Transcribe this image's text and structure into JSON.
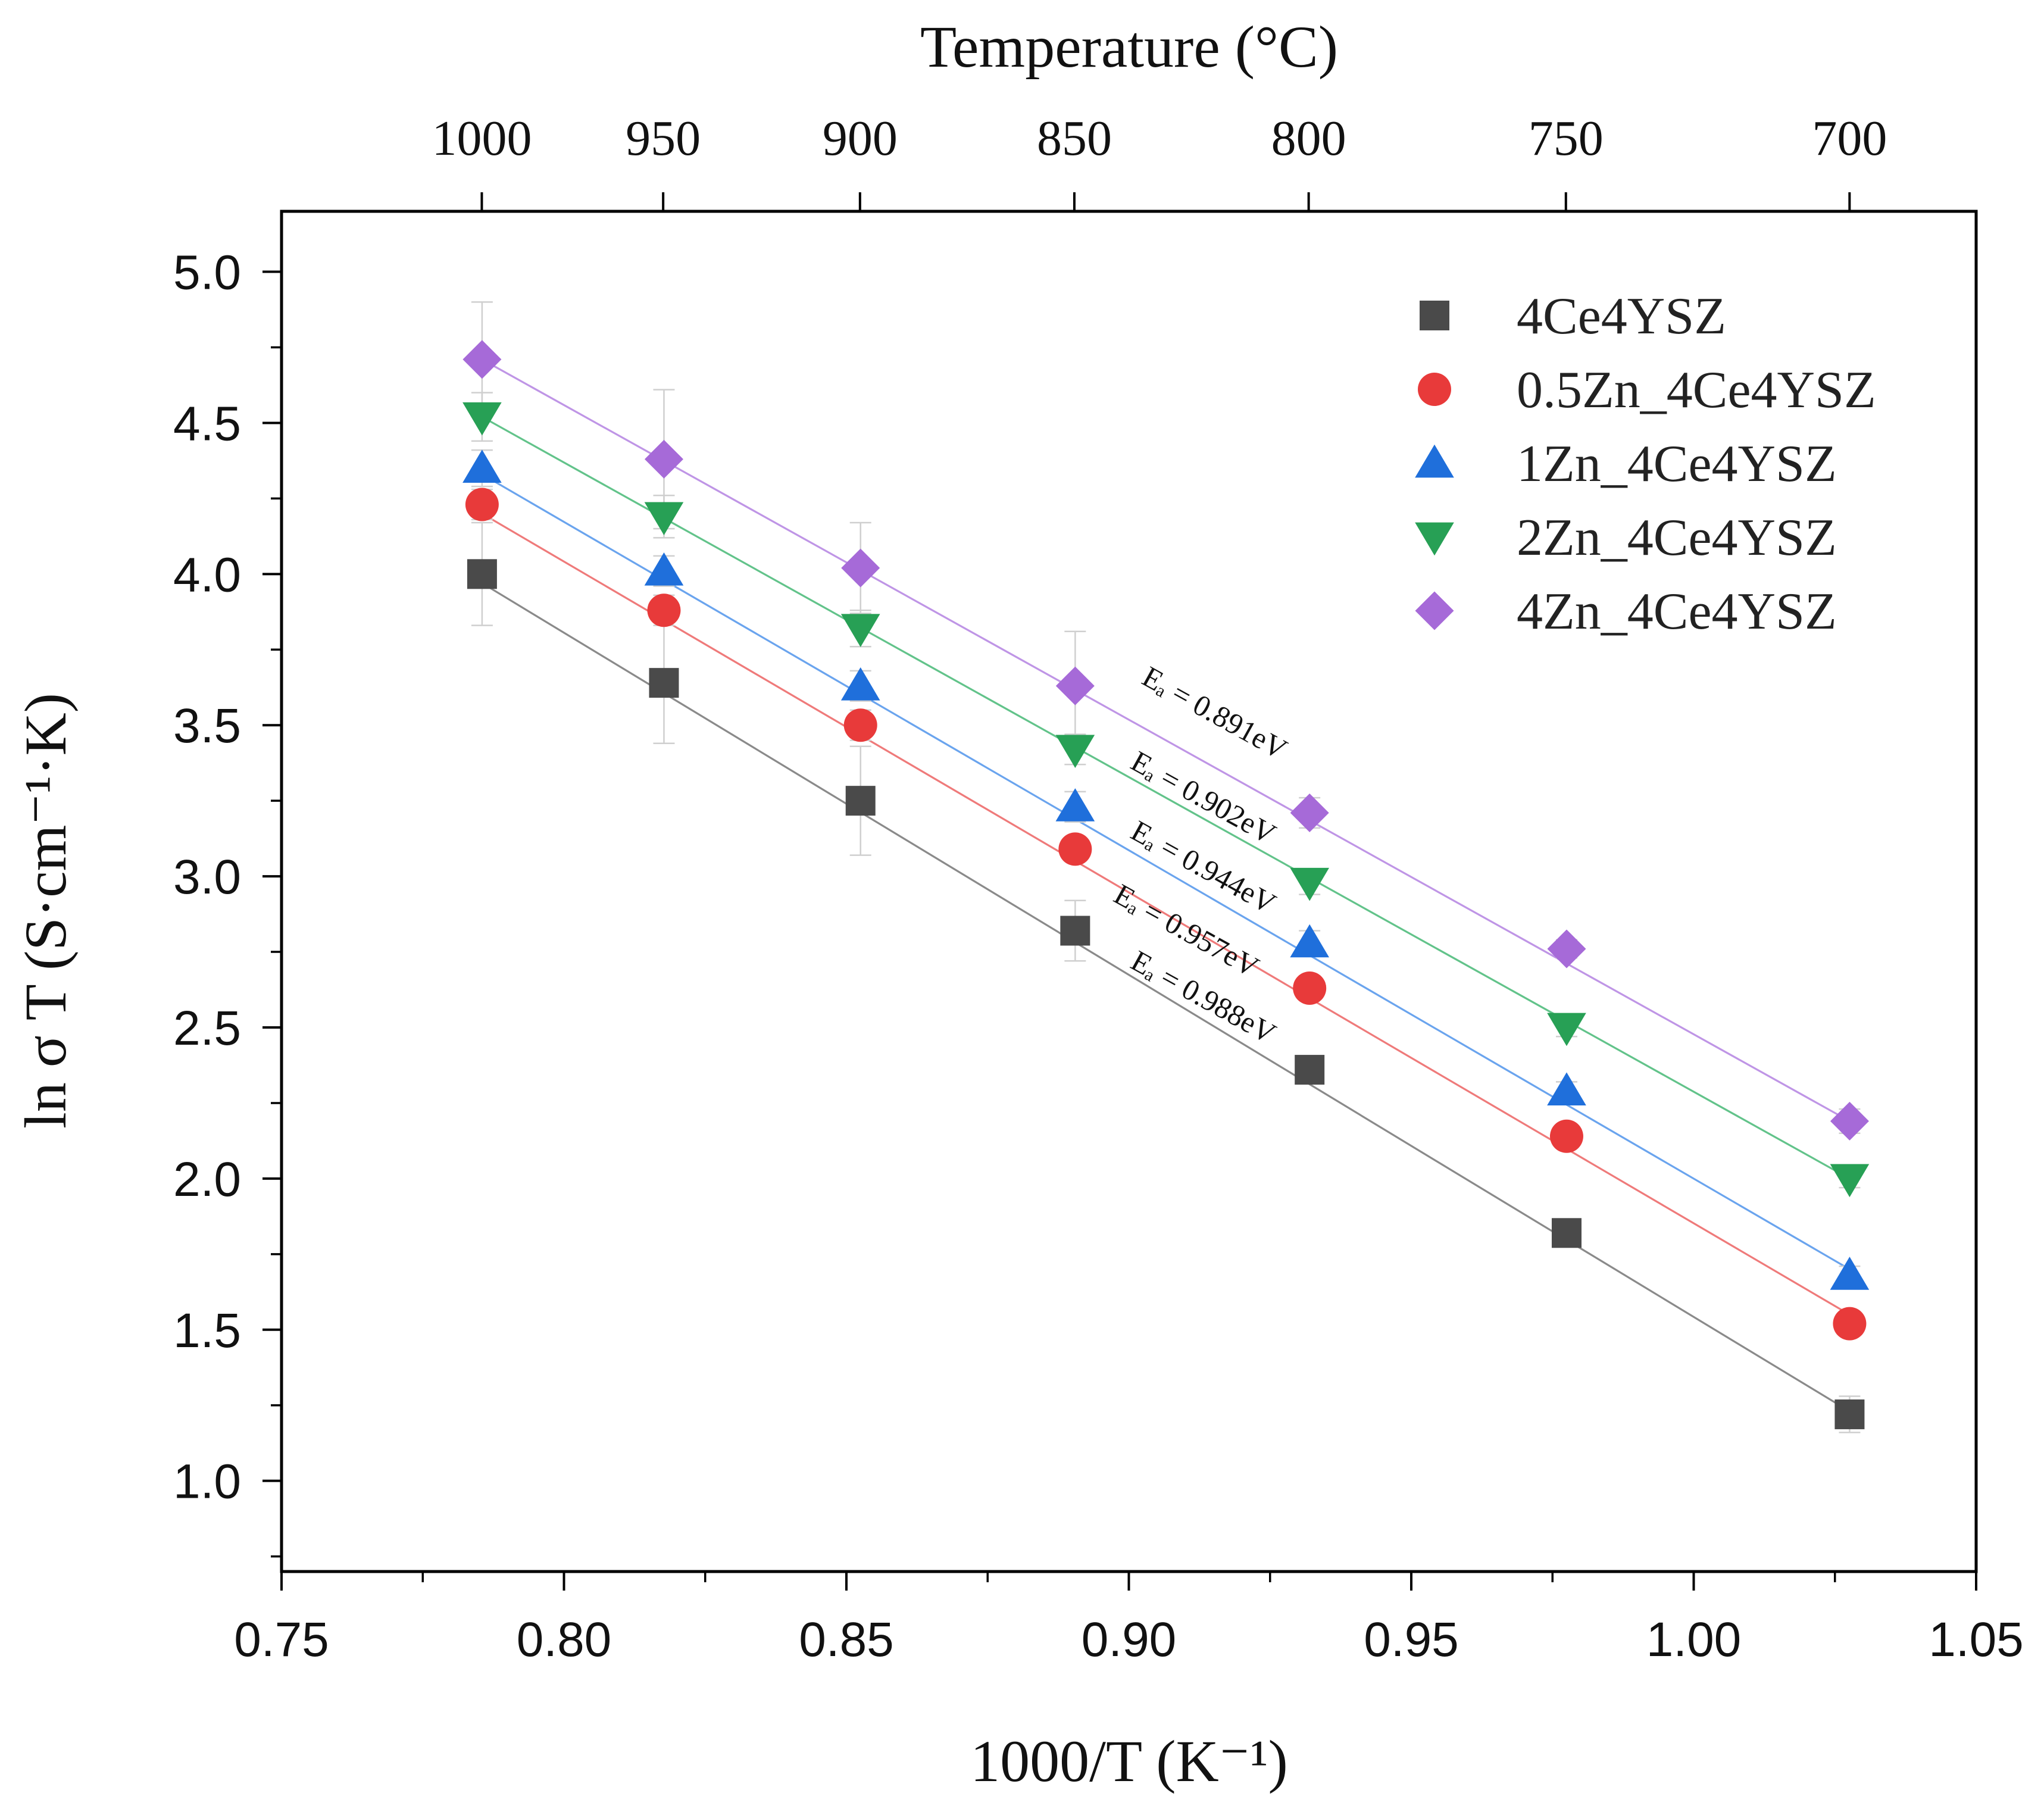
{
  "chart_data": {
    "type": "scatter",
    "title": "",
    "xlabel": "1000/T (K⁻¹)",
    "ylabel": "ln σ T (S·cm⁻¹·K)",
    "top_axis_label": "Temperature (°C)",
    "xlim": [
      0.75,
      1.05
    ],
    "ylim": [
      0.7,
      5.2
    ],
    "x_ticks": [
      "0.75",
      "0.80",
      "0.85",
      "0.90",
      "0.95",
      "1.00",
      "1.05"
    ],
    "y_ticks": [
      "1.0",
      "1.5",
      "2.0",
      "2.5",
      "3.0",
      "3.5",
      "4.0",
      "4.5",
      "5.0"
    ],
    "top_ticks": [
      "1000",
      "950",
      "900",
      "850",
      "800",
      "750",
      "700"
    ],
    "x": [
      0.7855,
      0.8177,
      0.8525,
      0.8905,
      0.932,
      0.9775,
      1.0276
    ],
    "series": [
      {
        "name": "4Ce4YSZ",
        "marker": "square",
        "color": "#4a4a4a",
        "line_color": "#8a8a8a",
        "fit": [
          0.7855,
          3.97,
          1.0276,
          1.23
        ],
        "values": [
          4.0,
          3.64,
          3.25,
          2.82,
          2.36,
          1.82,
          1.22
        ],
        "errors": [
          0.17,
          0.2,
          0.18,
          0.1,
          0.04,
          0.03,
          0.06
        ]
      },
      {
        "name": "0.5Zn_4Ce4YSZ",
        "marker": "circle",
        "color": "#e83a3a",
        "line_color": "#ef7a7a",
        "fit": [
          0.7855,
          4.2,
          1.0276,
          1.55
        ],
        "values": [
          4.23,
          3.88,
          3.5,
          3.09,
          2.63,
          2.14,
          1.52
        ],
        "errors": [
          0.05,
          0.05,
          0.05,
          0.04,
          0.04,
          0.03,
          0.03
        ]
      },
      {
        "name": "1Zn_4Ce4YSZ",
        "marker": "triangle-up",
        "color": "#1f6fdb",
        "line_color": "#6aa4ee",
        "fit": [
          0.7855,
          4.33,
          1.0276,
          1.7
        ],
        "values": [
          4.35,
          4.01,
          3.63,
          3.23,
          2.78,
          2.29,
          1.68
        ],
        "errors": [
          0.06,
          0.05,
          0.05,
          0.05,
          0.04,
          0.03,
          0.03
        ]
      },
      {
        "name": "2Zn_4Ce4YSZ",
        "marker": "triangle-down",
        "color": "#27a055",
        "line_color": "#62c38a",
        "fit": [
          0.7855,
          4.52,
          1.0276,
          2.0
        ],
        "values": [
          4.52,
          4.19,
          3.82,
          3.42,
          2.98,
          2.5,
          2.0
        ],
        "errors": [
          0.08,
          0.07,
          0.06,
          0.05,
          0.04,
          0.03,
          0.03
        ]
      },
      {
        "name": "4Zn_4Ce4YSZ",
        "marker": "diamond",
        "color": "#a66ad8",
        "line_color": "#bf95e6",
        "fit": [
          0.7855,
          4.71,
          1.0276,
          2.19
        ],
        "values": [
          4.71,
          4.38,
          4.02,
          3.63,
          3.21,
          2.76,
          2.19
        ],
        "errors": [
          0.19,
          0.23,
          0.15,
          0.18,
          0.05,
          0.03,
          0.04
        ]
      }
    ],
    "annotations": [
      {
        "text": "Eₐ = 0.891eV",
        "series": "4Zn_4Ce4YSZ"
      },
      {
        "text": "Eₐ = 0.902eV",
        "series": "2Zn_4Ce4YSZ"
      },
      {
        "text": "Eₐ = 0.944eV",
        "series": "1Zn_4Ce4YSZ"
      },
      {
        "text": "Eₐ = 0.957eV",
        "series": "0.5Zn_4Ce4YSZ"
      },
      {
        "text": "Eₐ = 0.988eV",
        "series": "4Ce4YSZ"
      }
    ],
    "legend_position": "top-right"
  }
}
